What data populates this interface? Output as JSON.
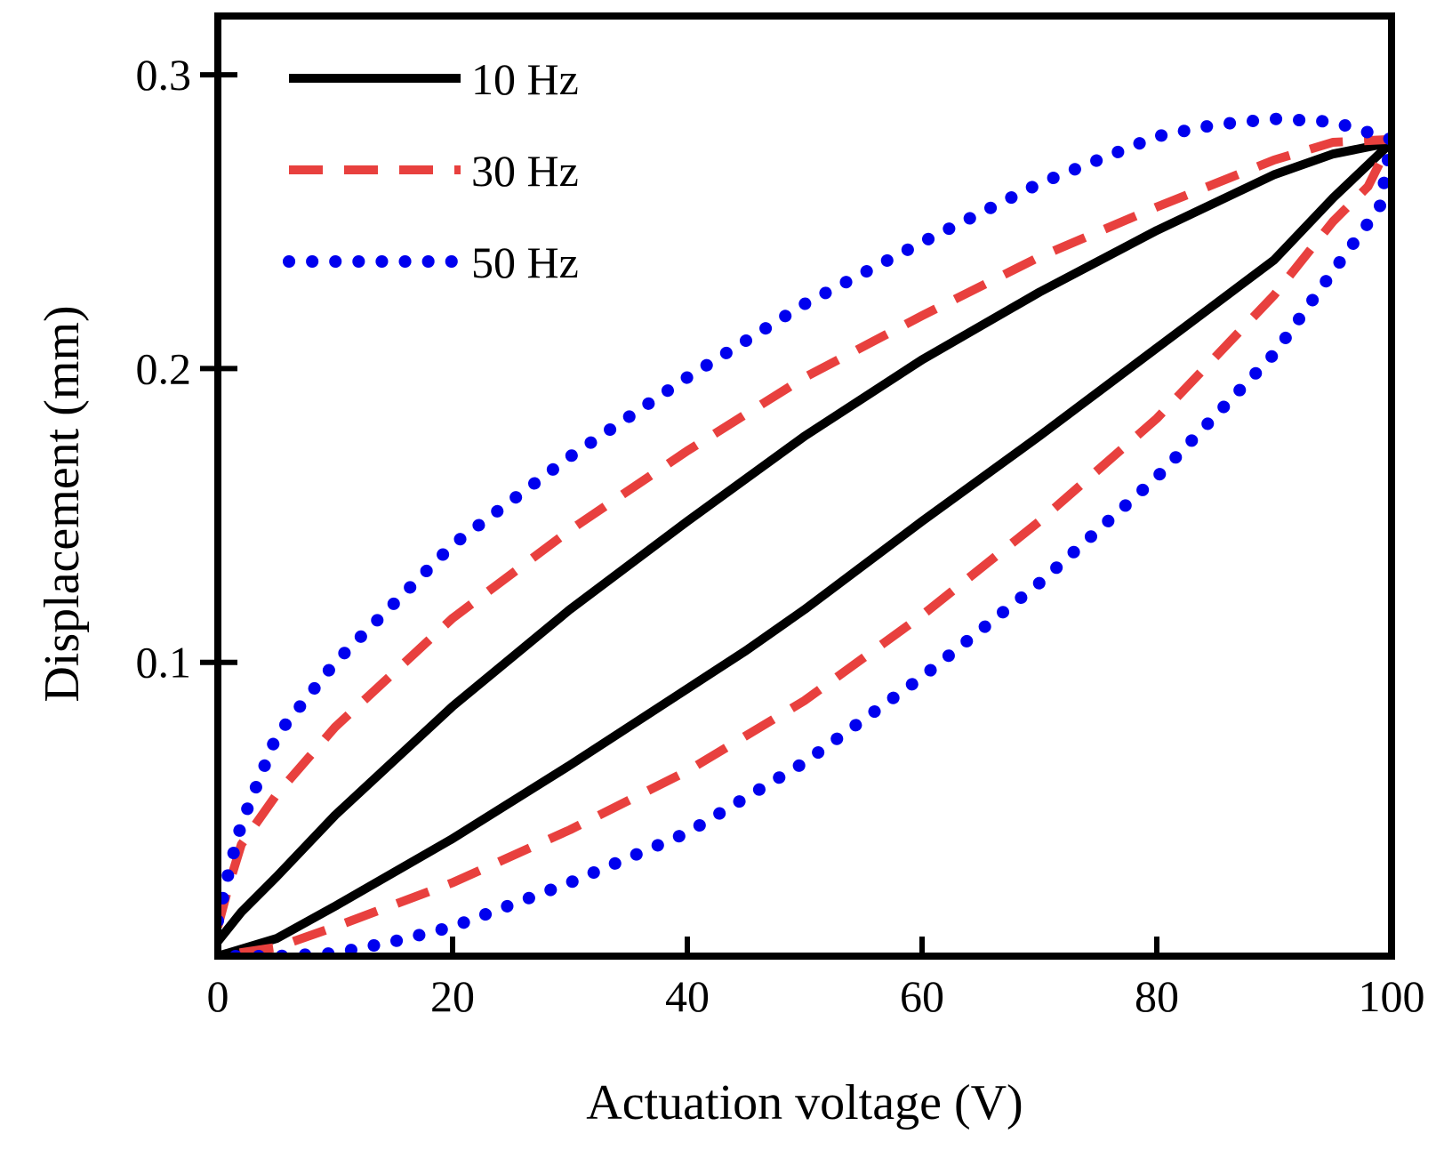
{
  "chart_data": {
    "type": "line",
    "title": "",
    "xlabel": "Actuation voltage (V)",
    "ylabel": "Displacement (mm)",
    "xlim": [
      0,
      100
    ],
    "ylim": [
      0,
      0.32
    ],
    "xticks": [
      0,
      20,
      40,
      60,
      80,
      100
    ],
    "xtick_labels": [
      "0",
      "20",
      "40",
      "60",
      "80",
      "100"
    ],
    "yticks": [
      0.1,
      0.2,
      0.3
    ],
    "ytick_labels": [
      "0.1",
      "0.2",
      "0.3"
    ],
    "grid": false,
    "legend_position": "top-left",
    "series": [
      {
        "name": "10 Hz",
        "color": "#000000",
        "style": "solid",
        "x": [
          0,
          2,
          5,
          10,
          20,
          30,
          40,
          50,
          60,
          70,
          80,
          90,
          95,
          100,
          95,
          90,
          80,
          70,
          60,
          50,
          45,
          40,
          30,
          20,
          10,
          5,
          0
        ],
        "y": [
          0.005,
          0.015,
          0.027,
          0.048,
          0.085,
          0.118,
          0.148,
          0.177,
          0.203,
          0.226,
          0.247,
          0.266,
          0.273,
          0.277,
          0.258,
          0.237,
          0.207,
          0.177,
          0.148,
          0.118,
          0.104,
          0.091,
          0.065,
          0.04,
          0.017,
          0.006,
          0.0
        ]
      },
      {
        "name": "30 Hz",
        "color": "#e8403e",
        "style": "dashed",
        "x": [
          0,
          1,
          2,
          5,
          10,
          20,
          30,
          40,
          50,
          60,
          70,
          80,
          90,
          95,
          100,
          98,
          95,
          90,
          80,
          70,
          60,
          50,
          40,
          30,
          20,
          10,
          5,
          0
        ],
        "y": [
          0.01,
          0.025,
          0.038,
          0.055,
          0.078,
          0.115,
          0.145,
          0.172,
          0.197,
          0.218,
          0.238,
          0.255,
          0.271,
          0.277,
          0.278,
          0.262,
          0.25,
          0.225,
          0.183,
          0.148,
          0.116,
          0.087,
          0.063,
          0.043,
          0.025,
          0.01,
          0.003,
          0.0
        ]
      },
      {
        "name": "50 Hz",
        "color": "#0000ee",
        "style": "dotted",
        "x": [
          0,
          1,
          2,
          5,
          10,
          20,
          30,
          40,
          50,
          60,
          70,
          80,
          85,
          90,
          95,
          100,
          99,
          95,
          90,
          80,
          70,
          60,
          50,
          40,
          30,
          20,
          15,
          10,
          5,
          0
        ],
        "y": [
          0.012,
          0.03,
          0.045,
          0.075,
          0.1,
          0.14,
          0.17,
          0.197,
          0.222,
          0.243,
          0.263,
          0.279,
          0.283,
          0.285,
          0.284,
          0.278,
          0.255,
          0.233,
          0.205,
          0.163,
          0.127,
          0.095,
          0.066,
          0.042,
          0.025,
          0.01,
          0.005,
          0.001,
          0.0,
          0.0
        ]
      }
    ]
  }
}
